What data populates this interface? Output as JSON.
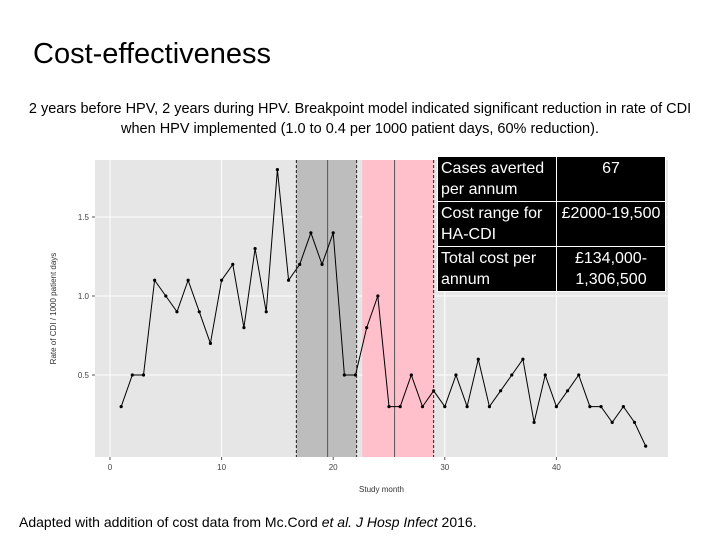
{
  "title": "Cost-effectiveness",
  "subtitle": "2 years before HPV, 2 years during HPV. Breakpoint model indicated significant reduction in rate of CDI when HPV implemented (1.0 to 0.4 per 1000 patient days, 60% reduction).",
  "cost_table": [
    {
      "label": "Cases averted per annum",
      "value": "67"
    },
    {
      "label": "Cost range for HA-CDI",
      "value": "£2000-19,500"
    },
    {
      "label": "Total cost per annum",
      "value": "£134,000-1,306,500"
    }
  ],
  "caption": {
    "prefix": "Adapted with addition of cost data from Mc.Cord ",
    "etal": "et al. J Hosp Infect",
    "suffix": " 2016."
  },
  "colors": {
    "panel": "#e6e6e6",
    "grey_band": "#bdbdbd",
    "pink_band": "#ffc0cb",
    "line": "#000000"
  },
  "chart_data": {
    "type": "line",
    "xlabel": "Study month",
    "ylabel": "Rate of CDI / 1000 patient days",
    "xlim": [
      0,
      50
    ],
    "ylim": [
      0.1,
      1.9
    ],
    "xticks": [
      {
        "v": 0,
        "t": "0"
      },
      {
        "v": 10,
        "t": "10"
      },
      {
        "v": 20,
        "t": "20"
      },
      {
        "v": 30,
        "t": "30"
      },
      {
        "v": 40,
        "t": "40"
      }
    ],
    "yticks": [
      {
        "v": 0.5,
        "t": "0.5"
      },
      {
        "v": 1.0,
        "t": "1.0"
      },
      {
        "v": 1.5,
        "t": "1.5"
      }
    ],
    "shaded_regions": [
      {
        "from": 16.7,
        "to": 22.1,
        "color": "#bdbdbd"
      },
      {
        "from": 22.6,
        "to": 29.0,
        "color": "#ffc0cb"
      }
    ],
    "dashed_lines": [
      16.7,
      22.1,
      29.0
    ],
    "solid_lines": [
      19.5,
      25.5
    ],
    "x": [
      1,
      2,
      3,
      4,
      5,
      6,
      7,
      8,
      9,
      10,
      11,
      12,
      13,
      14,
      15,
      16,
      17,
      18,
      19,
      20,
      21,
      22,
      23,
      24,
      25,
      26,
      27,
      28,
      29,
      30,
      31,
      32,
      33,
      34,
      35,
      36,
      37,
      38,
      39,
      40,
      41,
      42,
      43,
      44,
      45,
      46,
      47,
      48
    ],
    "y": [
      0.3,
      0.5,
      0.5,
      1.1,
      1.0,
      0.9,
      1.1,
      0.9,
      0.7,
      1.1,
      1.2,
      0.8,
      1.3,
      0.9,
      1.8,
      1.1,
      1.2,
      1.4,
      1.2,
      1.4,
      0.5,
      0.5,
      0.8,
      1.0,
      0.3,
      0.3,
      0.5,
      0.3,
      0.4,
      0.3,
      0.5,
      0.3,
      0.6,
      0.3,
      0.4,
      0.5,
      0.6,
      0.2,
      0.5,
      0.3,
      0.4,
      0.5,
      0.3,
      0.3,
      0.2,
      0.3,
      0.2,
      0.05
    ]
  }
}
